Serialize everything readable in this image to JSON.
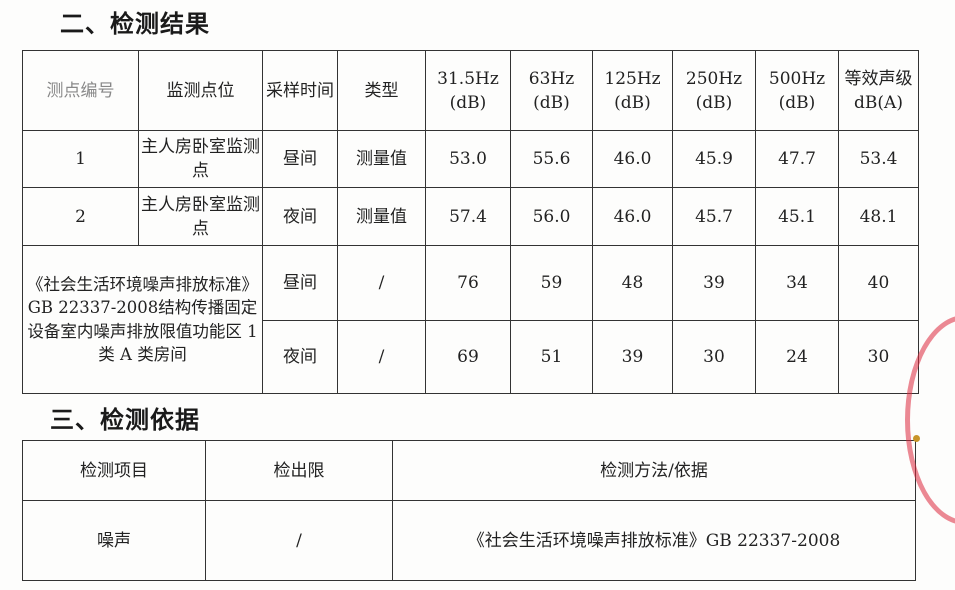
{
  "section2": {
    "title": "二、检测结果",
    "headers": [
      "测点编号",
      "监测点位",
      "采样时间",
      "类型",
      "31.5Hz (dB)",
      "63Hz (dB)",
      "125Hz (dB)",
      "250Hz (dB)",
      "500Hz (dB)",
      "等效声级 dB(A)"
    ],
    "rows": [
      {
        "id": "1",
        "location": "主人房卧室监测点",
        "time": "昼间",
        "type": "测量值",
        "values": [
          "53.0",
          "55.6",
          "46.0",
          "45.9",
          "47.7",
          "53.4"
        ]
      },
      {
        "id": "2",
        "location": "主人房卧室监测点",
        "time": "夜间",
        "type": "测量值",
        "values": [
          "57.4",
          "56.0",
          "46.0",
          "45.7",
          "45.1",
          "48.1"
        ]
      }
    ],
    "standard": {
      "label": "《社会生活环境噪声排放标准》GB 22337-2008结构传播固定设备室内噪声排放限值功能区 1 类 A 类房间",
      "rows": [
        {
          "time": "昼间",
          "type": "/",
          "values": [
            "76",
            "59",
            "48",
            "39",
            "34",
            "40"
          ]
        },
        {
          "time": "夜间",
          "type": "/",
          "values": [
            "69",
            "51",
            "39",
            "30",
            "24",
            "30"
          ]
        }
      ]
    }
  },
  "section3": {
    "title": "三、检测依据",
    "headers": [
      "检测项目",
      "检出限",
      "检测方法/依据"
    ],
    "rows": [
      {
        "item": "噪声",
        "limit": "/",
        "method": "《社会生活环境噪声排放标准》GB 22337-2008"
      }
    ]
  },
  "stamp_color": "#dc283c"
}
